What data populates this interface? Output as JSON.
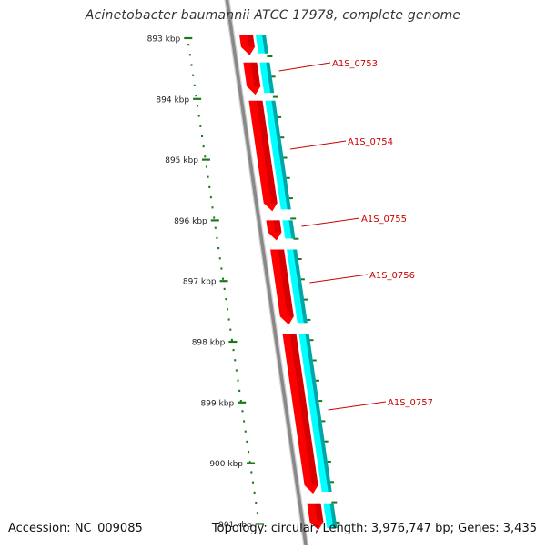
{
  "title": "Acinetobacter baumannii ATCC 17978, complete genome",
  "footer": {
    "accession": "Accession: NC_009085",
    "topology": "Topology: circular; Length: 3,976,747 bp; Genes: 3,435"
  },
  "colors": {
    "backbone": "#888888",
    "gene_forward": "#ff0000",
    "gene_forward_dark": "#b80000",
    "cds": "#00ffff",
    "cds_dark": "#00a6a6",
    "tick": "#1a7a1a",
    "label": "#cc0000"
  },
  "ticks": [
    {
      "label": "893 kbp",
      "kbp": 893
    },
    {
      "label": "894 kbp",
      "kbp": 894
    },
    {
      "label": "895 kbp",
      "kbp": 895
    },
    {
      "label": "896 kbp",
      "kbp": 896
    },
    {
      "label": "897 kbp",
      "kbp": 897
    },
    {
      "label": "898 kbp",
      "kbp": 898
    },
    {
      "label": "899 kbp",
      "kbp": 899
    },
    {
      "label": "900 kbp",
      "kbp": 900
    },
    {
      "label": "901 kbp",
      "kbp": 901
    }
  ],
  "genes": [
    {
      "locus": "",
      "start_kbp": 892.95,
      "end_kbp": 893.28,
      "labeled": false
    },
    {
      "locus": "A1S_0753",
      "start_kbp": 893.4,
      "end_kbp": 893.93,
      "labeled": true
    },
    {
      "locus": "A1S_0754",
      "start_kbp": 894.03,
      "end_kbp": 895.85,
      "labeled": true
    },
    {
      "locus": "A1S_0755",
      "start_kbp": 896.0,
      "end_kbp": 896.33,
      "labeled": true
    },
    {
      "locus": "A1S_0756",
      "start_kbp": 896.48,
      "end_kbp": 897.72,
      "labeled": true
    },
    {
      "locus": "A1S_0757",
      "start_kbp": 897.88,
      "end_kbp": 900.5,
      "labeled": true
    },
    {
      "locus": "",
      "start_kbp": 900.66,
      "end_kbp": 901.1,
      "labeled": false
    }
  ]
}
